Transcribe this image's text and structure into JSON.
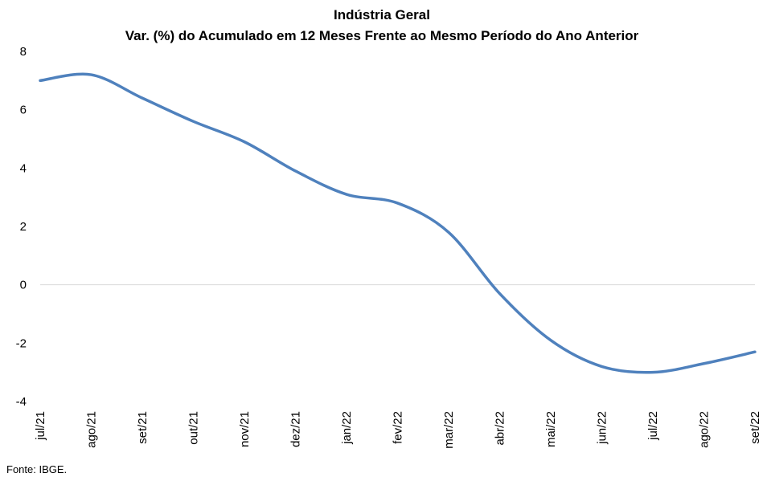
{
  "chart_data": {
    "type": "line",
    "title": "Indústria Geral",
    "subtitle": "Var. (%) do Acumulado em 12 Meses Frente ao Mesmo Período do Ano Anterior",
    "xlabel": "",
    "ylabel": "",
    "categories": [
      "jul/21",
      "ago/21",
      "set/21",
      "out/21",
      "nov/21",
      "dez/21",
      "jan/22",
      "fev/22",
      "mar/22",
      "abr/22",
      "mai/22",
      "jun/22",
      "jul/22",
      "ago/22",
      "set/22"
    ],
    "series": [
      {
        "values": [
          7.0,
          7.2,
          6.4,
          5.6,
          4.9,
          3.9,
          3.1,
          2.8,
          1.8,
          -0.3,
          -1.9,
          -2.8,
          -3.0,
          -2.7,
          -2.3
        ]
      }
    ],
    "ylim": [
      -4,
      8
    ],
    "yticks": [
      8,
      6,
      4,
      2,
      0,
      -2,
      -4
    ],
    "grid": false,
    "zero_line": true,
    "legend": "none",
    "colors": {
      "line": "#4f81bd",
      "zero_line": "#d9d9d9"
    },
    "source": "Fonte: IBGE."
  }
}
